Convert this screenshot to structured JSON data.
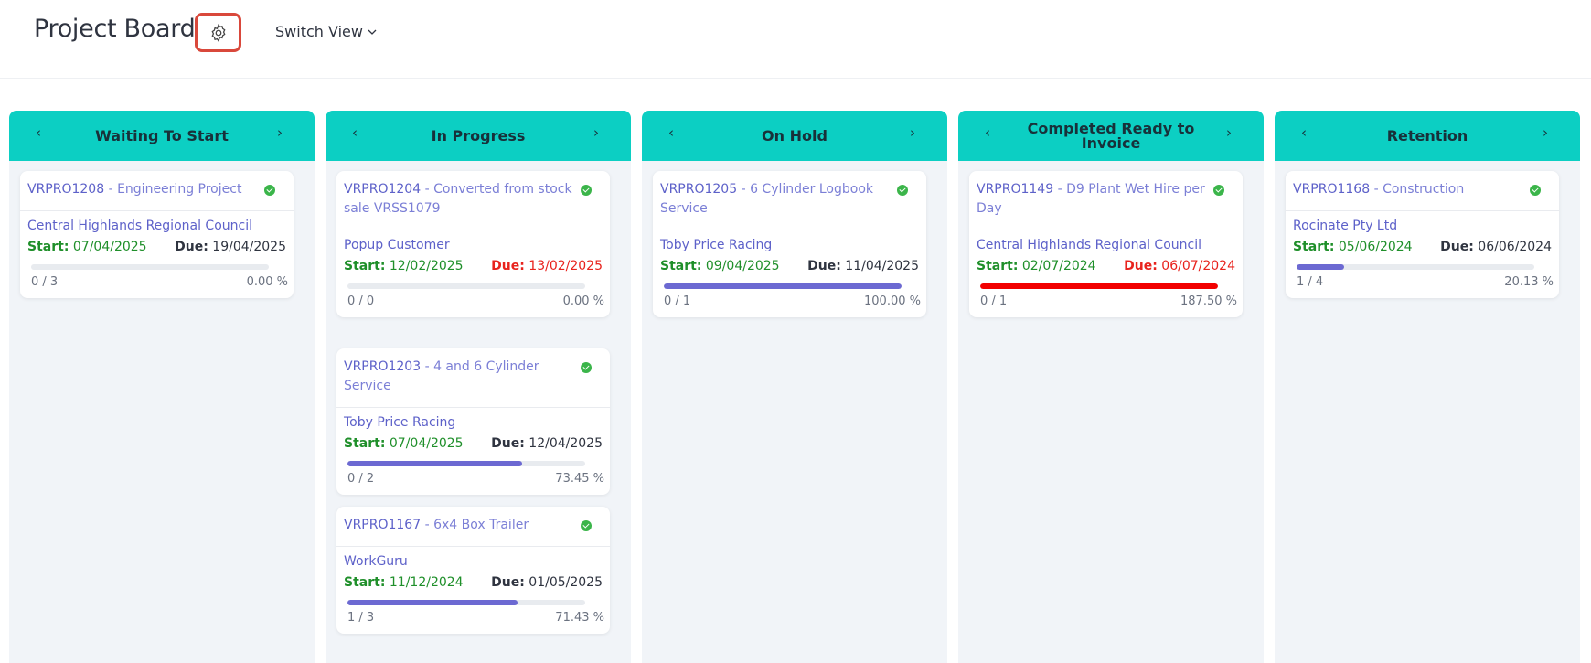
{
  "header": {
    "title": "Project Board",
    "switch_view_label": "Switch View",
    "settings_icon": "gear-icon"
  },
  "columns": [
    {
      "title": "Waiting To Start",
      "cards": [
        {
          "code": "VRPRO1208",
          "name": "Engineering Project",
          "customer": "Central Highlands Regional Council",
          "start_label": "Start:",
          "start": "07/04/2025",
          "due_label": "Due:",
          "due": "19/04/2025",
          "overdue": false,
          "tasks": "0 / 3",
          "percent_text": "0.00 %",
          "progress": 0
        }
      ]
    },
    {
      "title": "In Progress",
      "cards": [
        {
          "code": "VRPRO1204",
          "name": "Converted from stock sale VRSS1079",
          "customer": "Popup Customer",
          "start_label": "Start:",
          "start": "12/02/2025",
          "due_label": "Due:",
          "due": "13/02/2025",
          "overdue": true,
          "tasks": "0 / 0",
          "percent_text": "0.00 %",
          "progress": 0
        },
        {
          "code": "VRPRO1203",
          "name": "4 and 6 Cylinder Service",
          "customer": "Toby Price Racing",
          "start_label": "Start:",
          "start": "07/04/2025",
          "due_label": "Due:",
          "due": "12/04/2025",
          "overdue": false,
          "tasks": "0 / 2",
          "percent_text": "73.45 %",
          "progress": 73.45
        },
        {
          "code": "VRPRO1167",
          "name": "6x4 Box Trailer",
          "customer": "WorkGuru",
          "start_label": "Start:",
          "start": "11/12/2024",
          "due_label": "Due:",
          "due": "01/05/2025",
          "overdue": false,
          "tasks": "1 / 3",
          "percent_text": "71.43 %",
          "progress": 71.43
        }
      ]
    },
    {
      "title": "On Hold",
      "cards": [
        {
          "code": "VRPRO1205",
          "name": "6 Cylinder Logbook Service",
          "customer": "Toby Price Racing",
          "start_label": "Start:",
          "start": "09/04/2025",
          "due_label": "Due:",
          "due": "11/04/2025",
          "overdue": false,
          "tasks": "0 / 1",
          "percent_text": "100.00 %",
          "progress": 100
        }
      ]
    },
    {
      "title": "Completed Ready to Invoice",
      "cards": [
        {
          "code": "VRPRO1149",
          "name": "D9 Plant Wet Hire per Day",
          "customer": "Central Highlands Regional Council",
          "start_label": "Start:",
          "start": "02/07/2024",
          "due_label": "Due:",
          "due": "06/07/2024",
          "overdue": true,
          "tasks": "0 / 1",
          "percent_text": "187.50 %",
          "progress": 187.5
        }
      ]
    },
    {
      "title": "Retention",
      "cards": [
        {
          "code": "VRPRO1168",
          "name": "Construction",
          "customer": "Rocinate Pty Ltd",
          "start_label": "Start:",
          "start": "05/06/2024",
          "due_label": "Due:",
          "due": "06/06/2024",
          "overdue": false,
          "tasks": "1 / 4",
          "percent_text": "20.13 %",
          "progress": 20.13
        }
      ]
    }
  ],
  "arrows": {
    "prev": "‹",
    "next": "›",
    "separator": " - "
  },
  "colors": {
    "accent": "#0ccfc3",
    "progress": "#6c69d2",
    "overdue": "#f20000",
    "start": "#1f8f2a",
    "link": "#5d61c9",
    "highlight": "#d9483b"
  }
}
